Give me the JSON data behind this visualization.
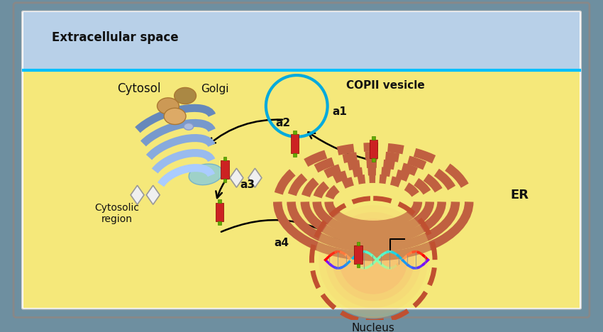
{
  "bg_outer": "#6e8fa0",
  "bg_extracellular": "#b8d0e8",
  "bg_cytosol": "#f5e87a",
  "extracellular_label": "Extracellular space",
  "cytosol_label": "Cytosol",
  "golgi_label": "Golgi",
  "er_label": "ER",
  "nucleus_label": "Nucleus",
  "copii_label": "COPII vesicle",
  "cytosolic_label": "Cytosolic\nregion",
  "a1_label": "a1",
  "a2_label": "a2",
  "a3_label": "a3",
  "a4_label": "a4",
  "border_line_color": "#00bfff",
  "er_color": "#c87050",
  "er_fill": "#d4907a",
  "golgi_blue": "#5577aa",
  "golgi_light": "#aabbdd",
  "nucleus_border": "#c05030",
  "nucleus_fill": "#f5e0d0",
  "nucleus_glow": "#ff4444",
  "protein_red": "#cc2222",
  "protein_green": "#66aa00",
  "diamond_color": "#e8e8e8",
  "vesicle_color": "#00aadd",
  "arrow_color": "#111111",
  "text_color": "#111111",
  "label_fontsize": 11,
  "small_fontsize": 10
}
